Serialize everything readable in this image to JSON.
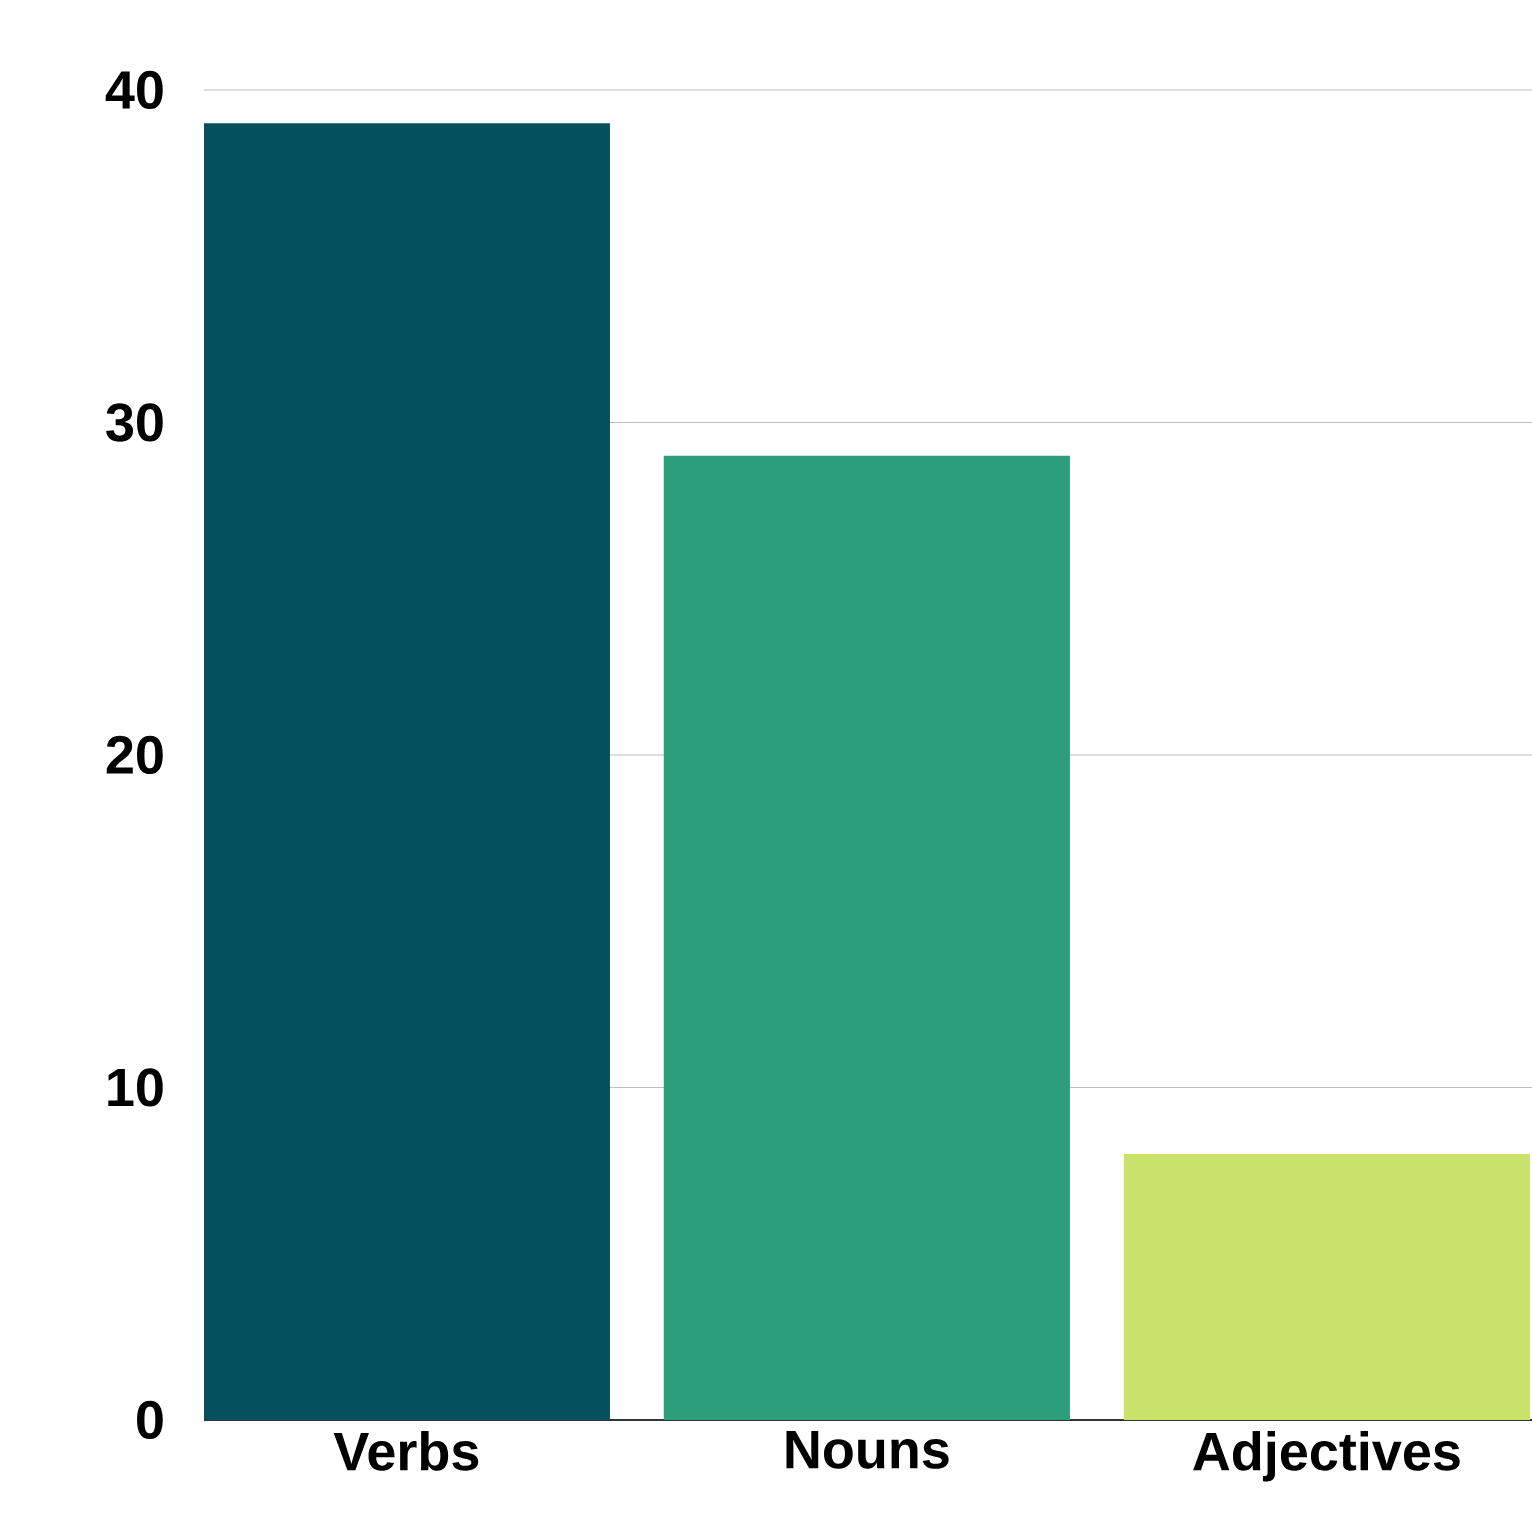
{
  "chart_data": {
    "type": "bar",
    "categories": [
      "Verbs",
      "Nouns",
      "Adjectives"
    ],
    "values": [
      39,
      29,
      8
    ],
    "colors": [
      "#04505c",
      "#2c9f7a",
      "#c8e26a"
    ],
    "ylim": [
      0,
      40
    ],
    "yticks": [
      0,
      10,
      20,
      30,
      40
    ],
    "grid": "y"
  }
}
